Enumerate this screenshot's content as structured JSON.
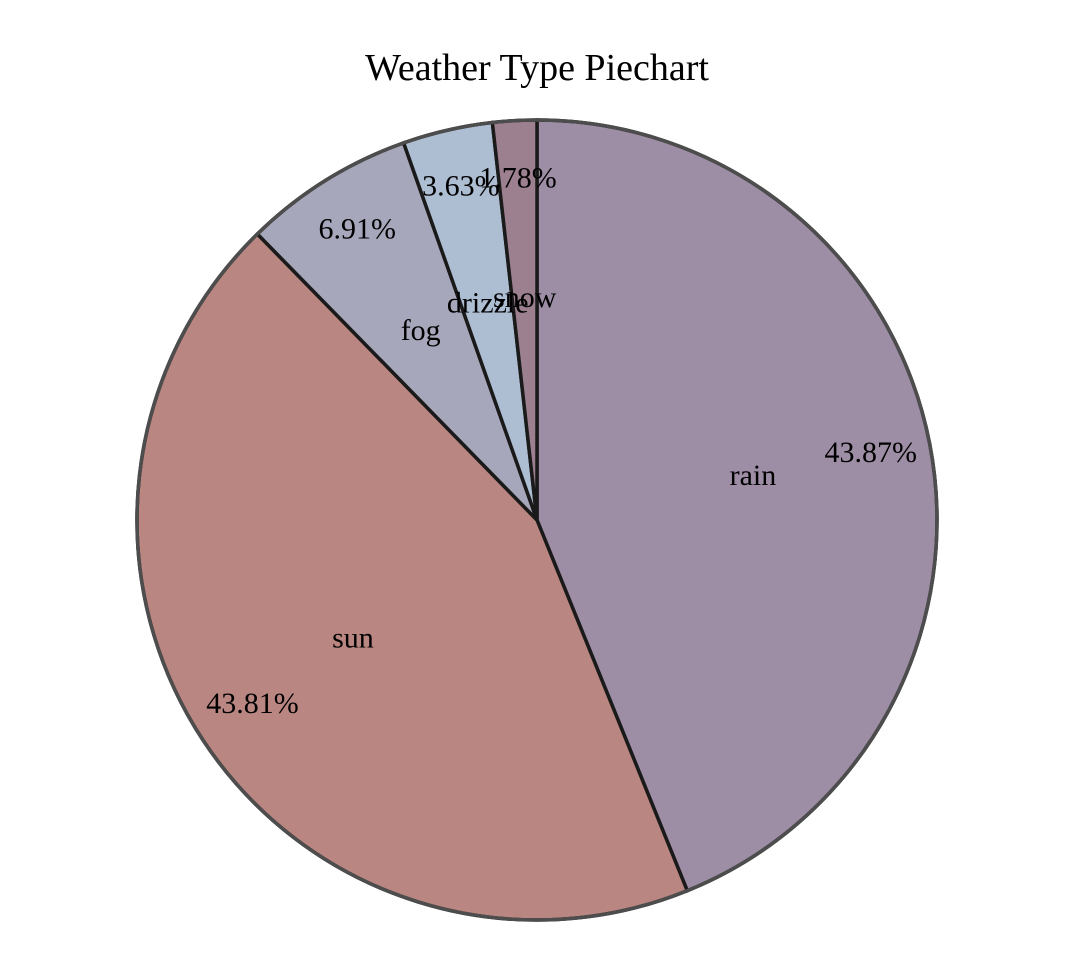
{
  "chart_data": {
    "type": "pie",
    "title": "Weather Type Piechart",
    "slices": [
      {
        "label": "rain",
        "value": 43.87,
        "pct_label": "43.87%",
        "color": "#9d8ea5"
      },
      {
        "label": "sun",
        "value": 43.81,
        "pct_label": "43.81%",
        "color": "#b98681"
      },
      {
        "label": "fog",
        "value": 6.91,
        "pct_label": "6.91%",
        "color": "#a7a7bb"
      },
      {
        "label": "drizzle",
        "value": 3.63,
        "pct_label": "3.63%",
        "color": "#adbdd2"
      },
      {
        "label": "snow",
        "value": 1.78,
        "pct_label": "1.78%",
        "color": "#9c8090"
      }
    ],
    "start_angle": "top",
    "direction": "clockwise",
    "legend": "none"
  }
}
